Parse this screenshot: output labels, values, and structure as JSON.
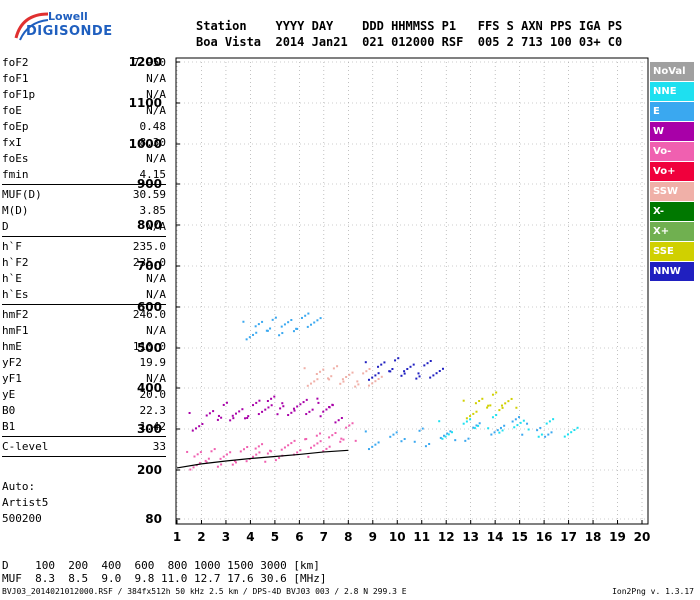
{
  "logo": {
    "line1": "Lowell",
    "line2": "DIGISONDE"
  },
  "header": {
    "labels": "Station    YYYY DAY    DDD HHMMSS P1   FFS S AXN PPS IGA PS",
    "values": "Boa Vista  2014 Jan21  021 012000 RSF  005 2 713 100 03+ C0"
  },
  "params": [
    {
      "label": "foF2",
      "value": "7.950"
    },
    {
      "label": "foF1",
      "value": "N/A"
    },
    {
      "label": "foF1p",
      "value": "N/A"
    },
    {
      "label": "foE",
      "value": "N/A"
    },
    {
      "label": "foEp",
      "value": "0.48"
    },
    {
      "label": "fxI",
      "value": "8.30"
    },
    {
      "label": "foEs",
      "value": "N/A"
    },
    {
      "label": "fmin",
      "value": "4.15"
    },
    {
      "sep": true
    },
    {
      "label": "MUF(D)",
      "value": "30.59"
    },
    {
      "label": "M(D)",
      "value": "3.85"
    },
    {
      "label": "D",
      "value": "N/A"
    },
    {
      "sep": true
    },
    {
      "label": "h`F",
      "value": "235.0"
    },
    {
      "label": "h`F2",
      "value": "235.0"
    },
    {
      "label": "h`E",
      "value": "N/A"
    },
    {
      "label": "h`Es",
      "value": "N/A"
    },
    {
      "sep": true
    },
    {
      "label": "hmF2",
      "value": "246.0"
    },
    {
      "label": "hmF1",
      "value": "N/A"
    },
    {
      "label": "hmE",
      "value": "110.0"
    },
    {
      "label": "yF2",
      "value": "19.9"
    },
    {
      "label": "yF1",
      "value": "N/A"
    },
    {
      "label": "yE",
      "value": "20.0"
    },
    {
      "label": "B0",
      "value": "22.3"
    },
    {
      "label": "B1",
      "value": "1.42"
    },
    {
      "sep": true
    },
    {
      "label": "C-level",
      "value": "33"
    },
    {
      "sep": true
    }
  ],
  "auto": {
    "l1": "Auto:",
    "l2": "Artist5",
    "l3": "500200"
  },
  "dmuf": {
    "d_line": "D    100  200  400  600  800 1000 1500 3000 [km]",
    "muf_line": "MUF  8.3  8.5  9.0  9.8 11.0 12.7 17.6 30.6 [MHz]"
  },
  "footer": {
    "file": "BVJ03_2014021012000.RSF / 384fx512h 50 kHz 2.5 km / DPS-4D BVJ03 003 / 2.8 N 299.3 E",
    "version": "Ion2Png v. 1.3.17"
  },
  "legend": [
    {
      "label": "NoVal",
      "color": "#a0a0a0"
    },
    {
      "label": "NNE",
      "color": "#1ee0f0"
    },
    {
      "label": "E",
      "color": "#3aa8f0"
    },
    {
      "label": "W",
      "color": "#a800a8"
    },
    {
      "label": "Vo-",
      "color": "#f060b0"
    },
    {
      "label": "Vo+",
      "color": "#f0003c"
    },
    {
      "label": "SSW",
      "color": "#f0b0a8"
    },
    {
      "label": "X-",
      "color": "#007800"
    },
    {
      "label": "X+",
      "color": "#70b050"
    },
    {
      "label": "SSE",
      "color": "#d0d000"
    },
    {
      "label": "NNW",
      "color": "#2020c0"
    }
  ],
  "chart_data": {
    "type": "scatter",
    "x_ticks": [
      "1",
      "2",
      "3",
      "4",
      "5",
      "6",
      "7",
      "8",
      "9",
      "10",
      "11",
      "12",
      "13",
      "14",
      "15",
      "16",
      "17",
      "18",
      "19",
      "20"
    ],
    "y_ticks": [
      "80",
      "200",
      "300",
      "400",
      "500",
      "600",
      "700",
      "800",
      "900",
      "1000",
      "1100",
      "1200"
    ],
    "xlim": [
      1,
      20
    ],
    "ylim": [
      80,
      1200
    ],
    "grid": "dotted",
    "legend_position": "right",
    "traces": [
      {
        "name": "Vo-",
        "freq_mhz": [
          1.7,
          2.0,
          2.5,
          3.0,
          3.5,
          4.0,
          4.5,
          5.0,
          5.5,
          6.0,
          6.5,
          7.0,
          7.5,
          8.0
        ],
        "height_km": [
          225,
          230,
          232,
          235,
          237,
          240,
          244,
          248,
          252,
          256,
          262,
          270,
          282,
          295
        ]
      },
      {
        "name": "W",
        "freq_mhz": [
          1.8,
          2.5,
          3.0,
          3.5,
          4.0,
          4.5,
          5.0,
          5.5,
          6.0,
          6.5,
          7.0,
          7.5
        ],
        "height_km": [
          320,
          330,
          345,
          340,
          350,
          355,
          360,
          358,
          352,
          355,
          350,
          340
        ]
      },
      {
        "name": "NNW",
        "freq_mhz": [
          9.0,
          9.5,
          10.0,
          10.5,
          11.0,
          11.5
        ],
        "height_km": [
          445,
          450,
          455,
          450,
          448,
          445
        ]
      },
      {
        "name": "SSW",
        "freq_mhz": [
          6.5,
          7.0,
          7.5,
          8.0,
          8.5,
          9.0
        ],
        "height_km": [
          430,
          432,
          435,
          430,
          428,
          425
        ]
      },
      {
        "name": "E",
        "freq_mhz": [
          9.0,
          10.0,
          11.0,
          12.0,
          13.0,
          14.0,
          15.0,
          16.0
        ],
        "height_km": [
          275,
          278,
          282,
          286,
          295,
          305,
          310,
          305
        ]
      },
      {
        "name": "NNE",
        "freq_mhz": [
          12.0,
          13.0,
          14.0,
          15.0,
          16.0,
          17.0
        ],
        "height_km": [
          300,
          310,
          315,
          312,
          305,
          300
        ]
      },
      {
        "name": "E",
        "freq_mhz": [
          4.0,
          4.5,
          5.0,
          5.5,
          6.0,
          6.5
        ],
        "height_km": [
          545,
          550,
          555,
          560,
          565,
          570
        ]
      },
      {
        "name": "SSE",
        "freq_mhz": [
          13.0,
          13.5,
          14.0,
          14.5
        ],
        "height_km": [
          350,
          360,
          370,
          365
        ]
      }
    ],
    "profile_line": {
      "freq_mhz": [
        1.0,
        2.0,
        3.0,
        4.0,
        5.0,
        6.0,
        7.0,
        8.0
      ],
      "height_km": [
        205,
        215,
        222,
        228,
        233,
        238,
        244,
        248
      ]
    }
  }
}
